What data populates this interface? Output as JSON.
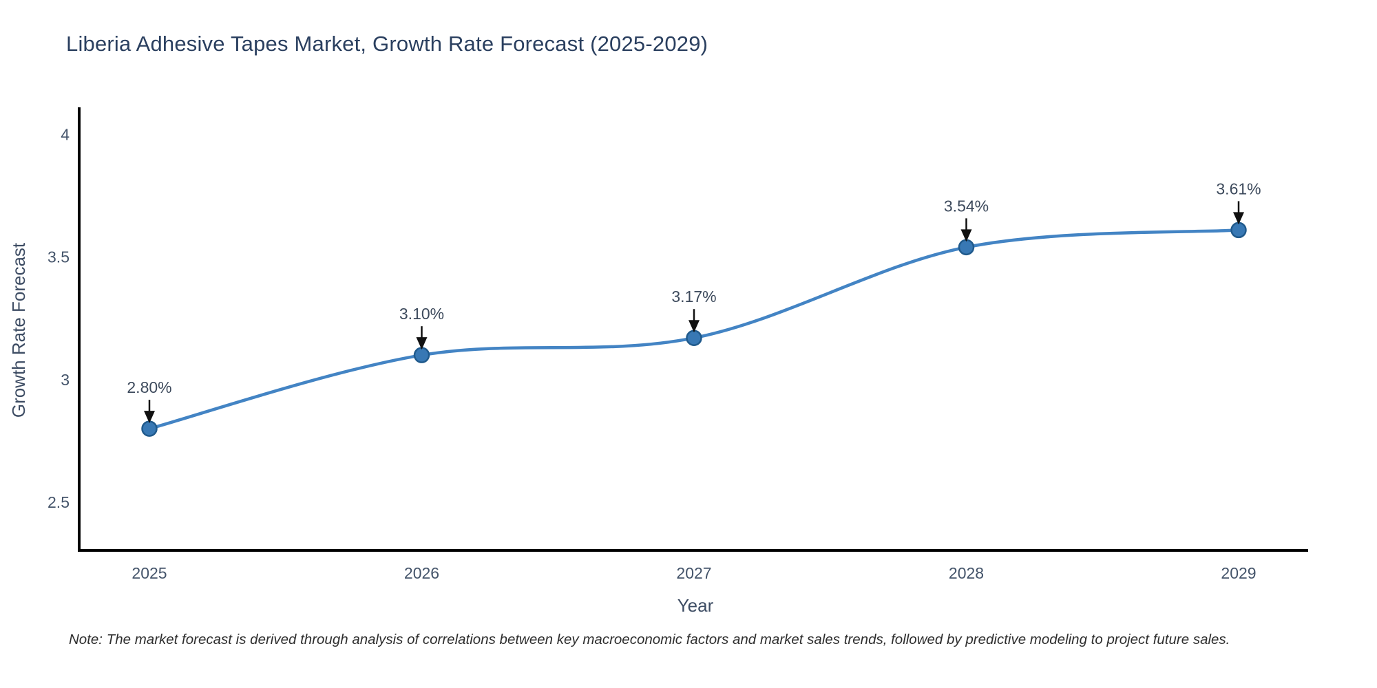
{
  "chart_data": {
    "type": "line",
    "line_shape": "spline",
    "title": "Liberia Adhesive Tapes Market, Growth Rate Forecast (2025-2029)",
    "xlabel": "Year",
    "ylabel": "Growth Rate Forecast",
    "categories": [
      "2025",
      "2026",
      "2027",
      "2028",
      "2029"
    ],
    "values": [
      2.8,
      3.1,
      3.17,
      3.54,
      3.61
    ],
    "point_labels": [
      "2.80%",
      "3.10%",
      "3.17%",
      "3.54%",
      "3.61%"
    ],
    "ytick_labels": [
      "2.5",
      "3",
      "3.5",
      "4"
    ],
    "ytick_values": [
      2.5,
      3.0,
      3.5,
      4.0
    ],
    "ylim": [
      2.3,
      4.1
    ],
    "grid": false,
    "legend_position": "none",
    "colors": {
      "line": "#4384c4",
      "marker_fill": "#3878b4",
      "marker_edge": "#205a8c",
      "arrow": "#111111",
      "axis_line": "#000000",
      "title_text": "#2a3f5f",
      "tick_text": "#44546a",
      "annotation_text": "#3d4a5c",
      "note_text": "#2e2e2e"
    }
  },
  "note": "Note: The market forecast is derived through analysis of correlations between key macroeconomic factors and market sales trends, followed by predictive modeling to project future sales."
}
